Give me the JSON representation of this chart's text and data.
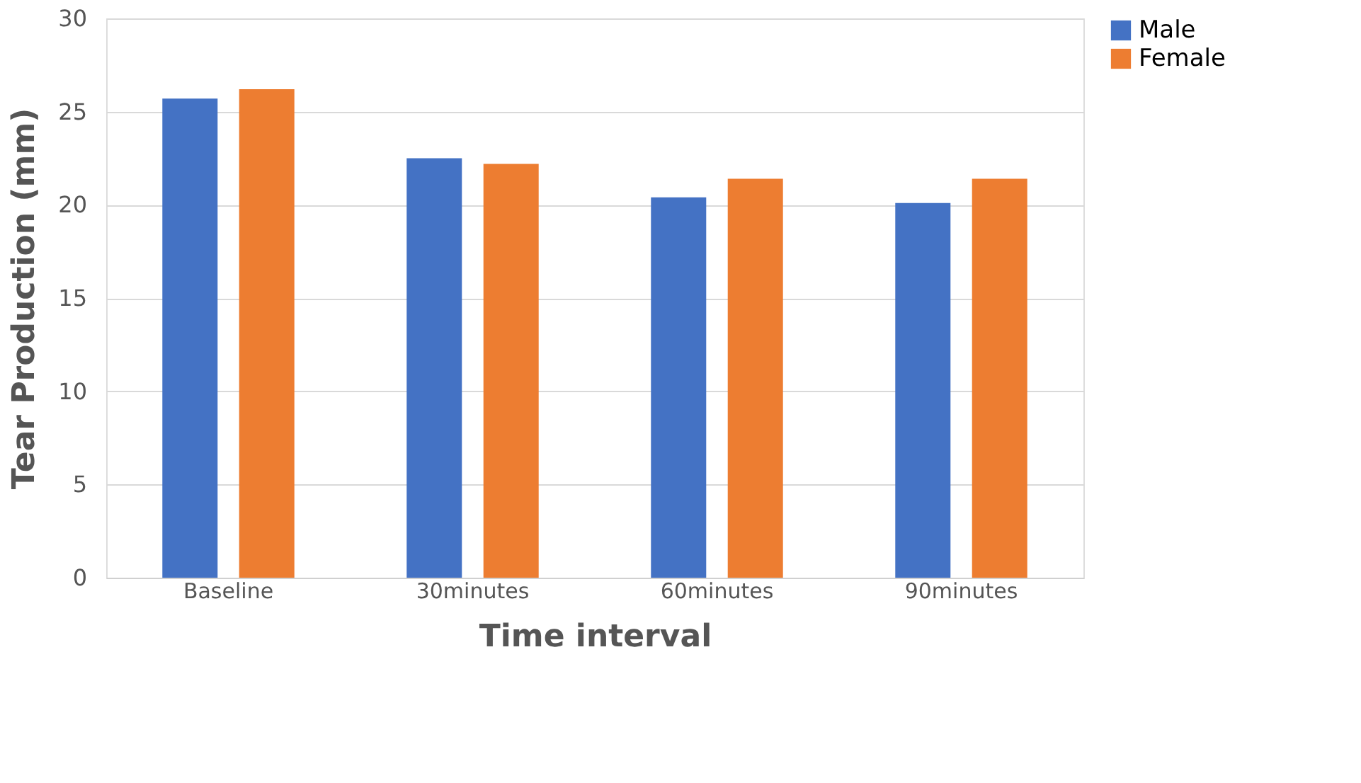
{
  "chart_data": {
    "type": "bar",
    "xlabel": "Time interval",
    "ylabel": "Tear Production (mm)",
    "categories": [
      "Baseline",
      "30minutes",
      "60minutes",
      "90minutes"
    ],
    "series": [
      {
        "name": "Male",
        "color": "#4472c4",
        "values": [
          25.7,
          22.5,
          20.4,
          20.1
        ]
      },
      {
        "name": "Female",
        "color": "#ed7d31",
        "values": [
          26.2,
          22.2,
          21.4,
          21.4
        ]
      }
    ],
    "ylim": [
      0,
      30
    ],
    "yticks": [
      0,
      5,
      10,
      15,
      20,
      25,
      30
    ],
    "grid": "y",
    "legend": "right"
  }
}
